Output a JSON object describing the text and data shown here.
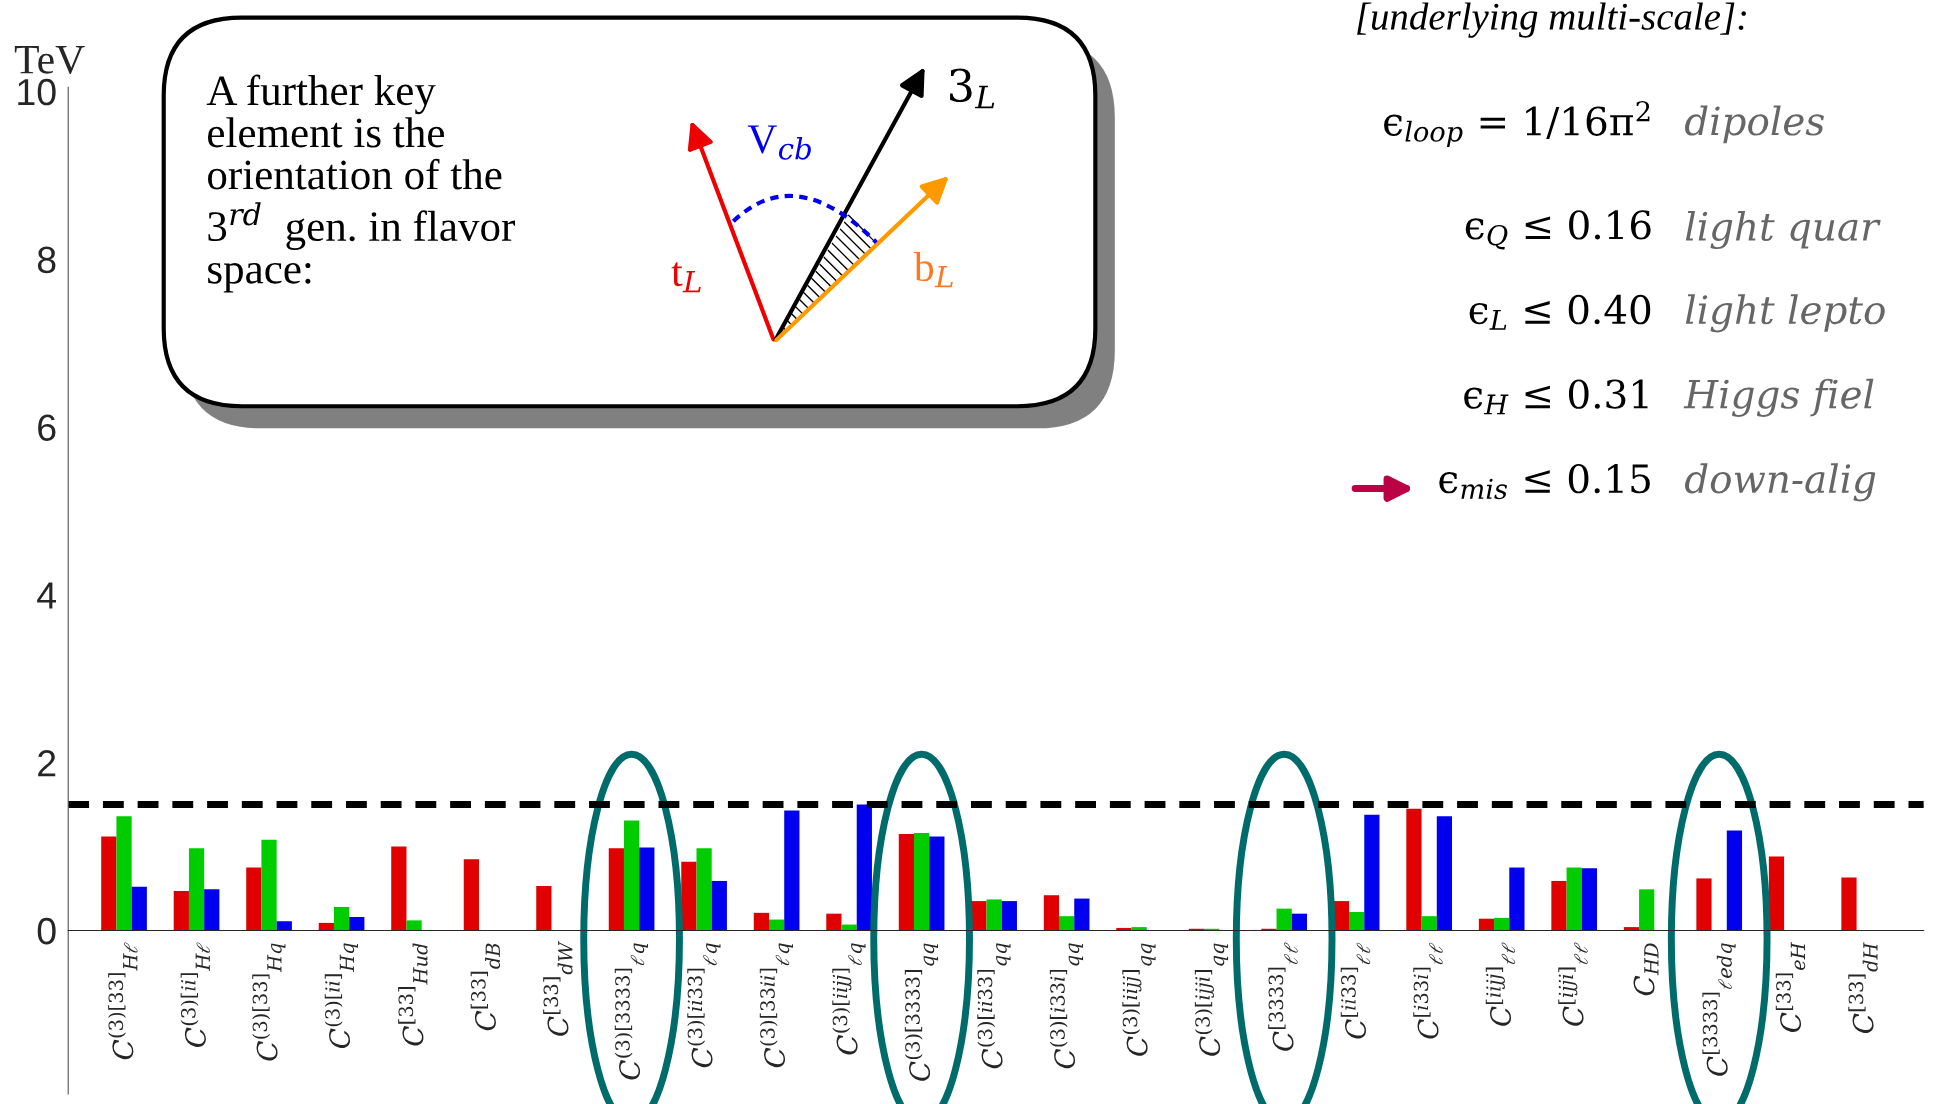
{
  "chart_data": {
    "type": "bar",
    "ylabel": "TeV",
    "categories": [
      "C$^{(3)[33]}$$_{Hℓ}$",
      "C$^{(3)[ii]}$$_{Hℓ}$",
      "C$^{(3)[33]}$$_{Hq}$",
      "C$^{(3)[ii]}$$_{Hq}$",
      "C$^{[33]}$$_{Hud}$",
      "C$^{[33]}$$_{dB}$",
      "C$^{[33]}$$_{dW}$",
      "C$^{(3)[3333]}$$_{ℓq}$",
      "C$^{(3)[ii33]}$$_{ℓq}$",
      "C$^{(3)[33ii]}$$_{ℓq}$",
      "C$^{(3)[iijj]}$$_{ℓq}$",
      "C$^{(3)[3333]}$$_{qq}$",
      "C$^{(3)[ii33]}$$_{qq}$",
      "C$^{(3)[i33i]}$$_{qq}$",
      "C$^{(3)[iijj]}$$_{qq}$",
      "C$^{(3)[ijji]}$$_{qq}$",
      "C$^{[3333]}$$_{ℓℓ}$",
      "C$^{[ii33]}$$_{ℓℓ}$",
      "C$^{[i33i]}$$_{ℓℓ}$",
      "C$^{[iijj]}$$_{ℓℓ}$",
      "C$^{[ijji]}$$_{ℓℓ}$",
      "C$_{HD}$",
      "C$^{[3333]}$$_{ℓedq}$",
      "C$^{[33]}$$_{eH}$",
      "C$^{[33]}$$_{dH}$"
    ],
    "series": [
      {
        "color": "#e00000",
        "values": [
          1.12,
          0.47,
          0.75,
          0.09,
          1.0,
          0.85,
          0.53,
          0.98,
          0.82,
          0.21,
          0.2,
          1.15,
          0.35,
          0.42,
          0.03,
          0.02,
          0.02,
          0.35,
          1.45,
          0.14,
          0.59,
          0.04,
          0.62,
          0.88,
          0.63
        ]
      },
      {
        "color": "#00cc00",
        "values": [
          1.36,
          0.98,
          1.08,
          0.28,
          0.12,
          null,
          null,
          1.31,
          0.98,
          0.13,
          0.07,
          1.16,
          0.37,
          0.17,
          0.04,
          0.02,
          0.26,
          0.22,
          0.17,
          0.15,
          0.75,
          0.49,
          null,
          null,
          null
        ]
      },
      {
        "color": "#0000ee",
        "values": [
          0.52,
          0.49,
          0.11,
          0.16,
          null,
          null,
          null,
          0.99,
          0.59,
          1.43,
          1.5,
          1.12,
          0.35,
          0.38,
          null,
          null,
          0.2,
          1.38,
          1.36,
          0.75,
          0.74,
          null,
          1.19,
          null,
          null
        ]
      }
    ],
    "ylim": [
      -1.95,
      10.05
    ],
    "yticks": [
      0,
      2,
      4,
      6,
      8,
      10
    ],
    "ref_lines": [
      {
        "axis": "y",
        "value": 1.5,
        "color": "#000000",
        "line_style": "dashed"
      }
    ],
    "annotations": [
      "A further key\nelement is the\norientation of the\n3$^{rd}$  gen. in flavor\nspace:",
      "t$_{L}$",
      "V$_{cb}$",
      "3$_{L}$",
      "b$_{L}$",
      "[underlying multi-scale]:",
      "ϵ$_{loop}$ = 1/16π$^{2}$",
      "dipoles",
      "ϵ$_{Q}$ ≤ 0.16",
      "light quar",
      "ϵ$_{L}$ ≤ 0.40",
      "light lepto",
      "ϵ$_{H}$ ≤ 0.31",
      "Higgs fiel",
      "ϵ$_{mis}$ ≤ 0.15",
      "down-alig"
    ],
    "grid": false,
    "legend": false
  }
}
